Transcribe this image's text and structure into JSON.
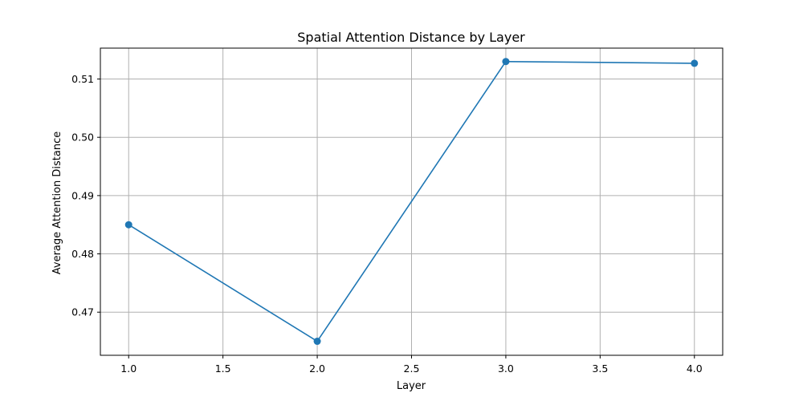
{
  "chart_data": {
    "type": "line",
    "title": "Spatial Attention Distance by Layer",
    "xlabel": "Layer",
    "ylabel": "Average Attention Distance",
    "xlim": [
      0.85,
      4.15
    ],
    "ylim": [
      0.4626,
      0.5153
    ],
    "xticks": [
      1.0,
      1.5,
      2.0,
      2.5,
      3.0,
      3.5,
      4.0
    ],
    "xtick_labels": [
      "1.0",
      "1.5",
      "2.0",
      "2.5",
      "3.0",
      "3.5",
      "4.0"
    ],
    "yticks": [
      0.47,
      0.48,
      0.49,
      0.5,
      0.51
    ],
    "ytick_labels": [
      "0.47",
      "0.48",
      "0.49",
      "0.50",
      "0.51"
    ],
    "grid": true,
    "colors": {
      "line": "#1f77b4",
      "grid": "#b0b0b0",
      "axes": "#000000"
    },
    "series": [
      {
        "x": [
          1.0,
          2.0,
          3.0,
          4.0
        ],
        "values": [
          0.485,
          0.465,
          0.513,
          0.5127
        ],
        "marker": "circle"
      }
    ]
  }
}
